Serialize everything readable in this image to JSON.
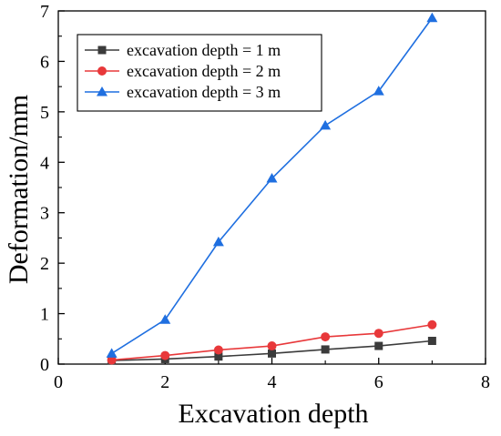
{
  "chart_data": {
    "type": "line",
    "title": "",
    "xlabel": "Excavation depth",
    "ylabel": "Deformation/mm",
    "xlim": [
      0,
      8
    ],
    "ylim": [
      0,
      7
    ],
    "x_ticks": [
      "0",
      "2",
      "4",
      "6",
      "8"
    ],
    "y_ticks": [
      "0",
      "1",
      "2",
      "3",
      "4",
      "5",
      "6",
      "7"
    ],
    "grid": false,
    "legend_position": "top-left",
    "series": [
      {
        "name": "excavation depth = 1 m",
        "color": "#3b3b3b",
        "marker": "square",
        "x": [
          1,
          2,
          3,
          4,
          5,
          6,
          7
        ],
        "y": [
          0.07,
          0.1,
          0.15,
          0.21,
          0.29,
          0.36,
          0.46
        ]
      },
      {
        "name": "excavation depth = 2 m",
        "color": "#e8383a",
        "marker": "circle",
        "x": [
          1,
          2,
          3,
          4,
          5,
          6,
          7
        ],
        "y": [
          0.08,
          0.17,
          0.28,
          0.36,
          0.54,
          0.61,
          0.78
        ]
      },
      {
        "name": "excavation depth = 3 m",
        "color": "#1f6fe0",
        "marker": "triangle",
        "x": [
          1,
          2,
          3,
          4,
          5,
          6,
          7
        ],
        "y": [
          0.21,
          0.88,
          2.42,
          3.68,
          4.73,
          5.41,
          6.86
        ]
      }
    ]
  }
}
